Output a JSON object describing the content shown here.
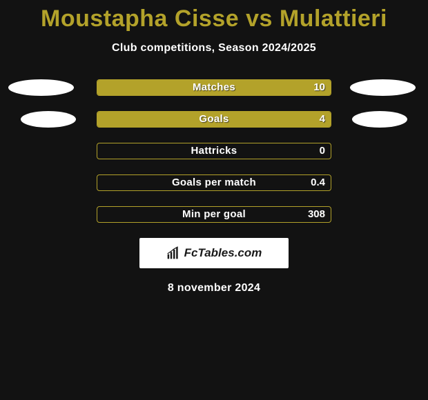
{
  "title_color": "#b3a22a",
  "title": "Moustapha Cisse vs Mulattieri",
  "subtitle": "Club competitions, Season 2024/2025",
  "left_color": "#b3a22a",
  "right_color": "#b3a22a",
  "border_color": "#b3a22a",
  "rows": [
    {
      "label": "Matches",
      "left_val": "",
      "right_val": "10",
      "left_pct": 0,
      "right_pct": 100,
      "ellipse": "big"
    },
    {
      "label": "Goals",
      "left_val": "",
      "right_val": "4",
      "left_pct": 0,
      "right_pct": 100,
      "ellipse": "small"
    },
    {
      "label": "Hattricks",
      "left_val": "",
      "right_val": "0",
      "left_pct": 0,
      "right_pct": 0,
      "ellipse": "none"
    },
    {
      "label": "Goals per match",
      "left_val": "",
      "right_val": "0.4",
      "left_pct": 0,
      "right_pct": 0,
      "ellipse": "none"
    },
    {
      "label": "Min per goal",
      "left_val": "",
      "right_val": "308",
      "left_pct": 0,
      "right_pct": 0,
      "ellipse": "none"
    }
  ],
  "badge_text": "FcTables.com",
  "date": "8 november 2024"
}
